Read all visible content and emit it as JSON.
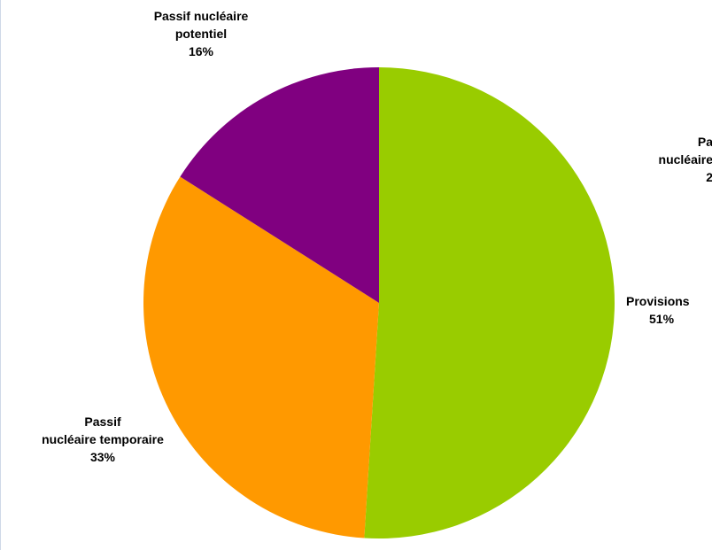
{
  "chart_data": {
    "type": "pie",
    "slices": [
      {
        "label_lines": [
          "Provisions"
        ],
        "value": 51,
        "value_label": "51%",
        "color": "#99cc00"
      },
      {
        "label_lines": [
          "Passif",
          "nucléaire temporaire"
        ],
        "value": 33,
        "value_label": "33%",
        "color": "#ff9900"
      },
      {
        "label_lines": [
          "Passif nucléaire",
          "potentiel"
        ],
        "value": 16,
        "value_label": "16%",
        "color": "#800080"
      }
    ],
    "cut_off_label": {
      "lines": [
        "Pa",
        "nucléaire",
        "2"
      ]
    }
  }
}
